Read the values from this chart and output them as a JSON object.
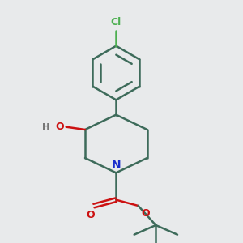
{
  "bg_color": "#e8eaeb",
  "bond_color": "#3d6b5a",
  "bond_width": 1.8,
  "cl_color": "#4caf50",
  "n_color": "#1a2ecc",
  "o_color": "#cc1111",
  "h_color": "#777777",
  "figsize": [
    3.0,
    3.0
  ],
  "dpi": 100,
  "xlim": [
    2.5,
    8.5
  ],
  "ylim": [
    0.8,
    9.8
  ]
}
